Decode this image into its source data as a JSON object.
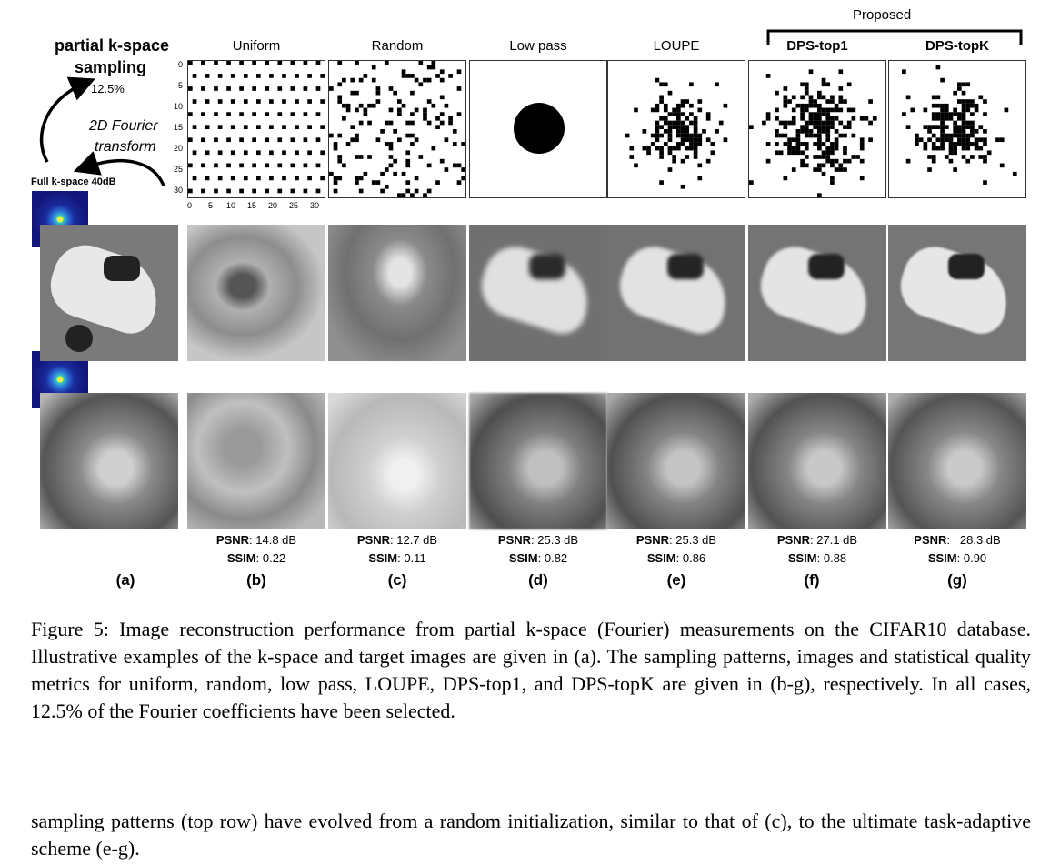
{
  "left_panel": {
    "title_line1": "partial k-space",
    "title_line2": "sampling",
    "rate": "12.5%",
    "transform_line1": "2D Fourier",
    "transform_line2": "transform",
    "full_label": "Full k-space 40dB"
  },
  "proposed_label": "Proposed",
  "columns": [
    {
      "title": "Uniform",
      "bold": false,
      "psnr": "14.8 dB",
      "ssim": "0.22",
      "letter": "(b)"
    },
    {
      "title": "Random",
      "bold": false,
      "psnr": "12.7 dB",
      "ssim": "0.11",
      "letter": "(c)"
    },
    {
      "title": "Low pass",
      "bold": false,
      "psnr": "25.3 dB",
      "ssim": "0.82",
      "letter": "(d)"
    },
    {
      "title": "LOUPE",
      "bold": false,
      "psnr": "25.3 dB",
      "ssim": "0.86",
      "letter": "(e)"
    },
    {
      "title": "DPS-top1",
      "bold": true,
      "psnr": "27.1 dB",
      "ssim": "0.88",
      "letter": "(f)"
    },
    {
      "title": "DPS-topK",
      "bold": true,
      "psnr": "28.3 dB",
      "ssim": "0.90",
      "letter": "(g)"
    }
  ],
  "letter_a": "(a)",
  "metric_labels": {
    "psnr": "PSNR",
    "ssim": "SSIM"
  },
  "y_ticks": [
    "0",
    "5",
    "10",
    "15",
    "20",
    "25",
    "30"
  ],
  "x_ticks": [
    "0",
    "5",
    "10",
    "15",
    "20",
    "25",
    "30"
  ],
  "caption": "Figure 5: Image reconstruction performance from partial k-space (Fourier) measurements on the CIFAR10 database. Illustrative examples of the k-space and target images are given in (a). The sampling patterns, images and statistical quality metrics for uniform, random, low pass, LOUPE, DPS-top1, and DPS-topK are given in (b-g), respectively. In all cases, 12.5% of the Fourier coefficients have been selected.",
  "body_text": "sampling patterns (top row) have evolved from a random initialization, similar to that of (c), to the ultimate task-adaptive scheme (e-g)."
}
